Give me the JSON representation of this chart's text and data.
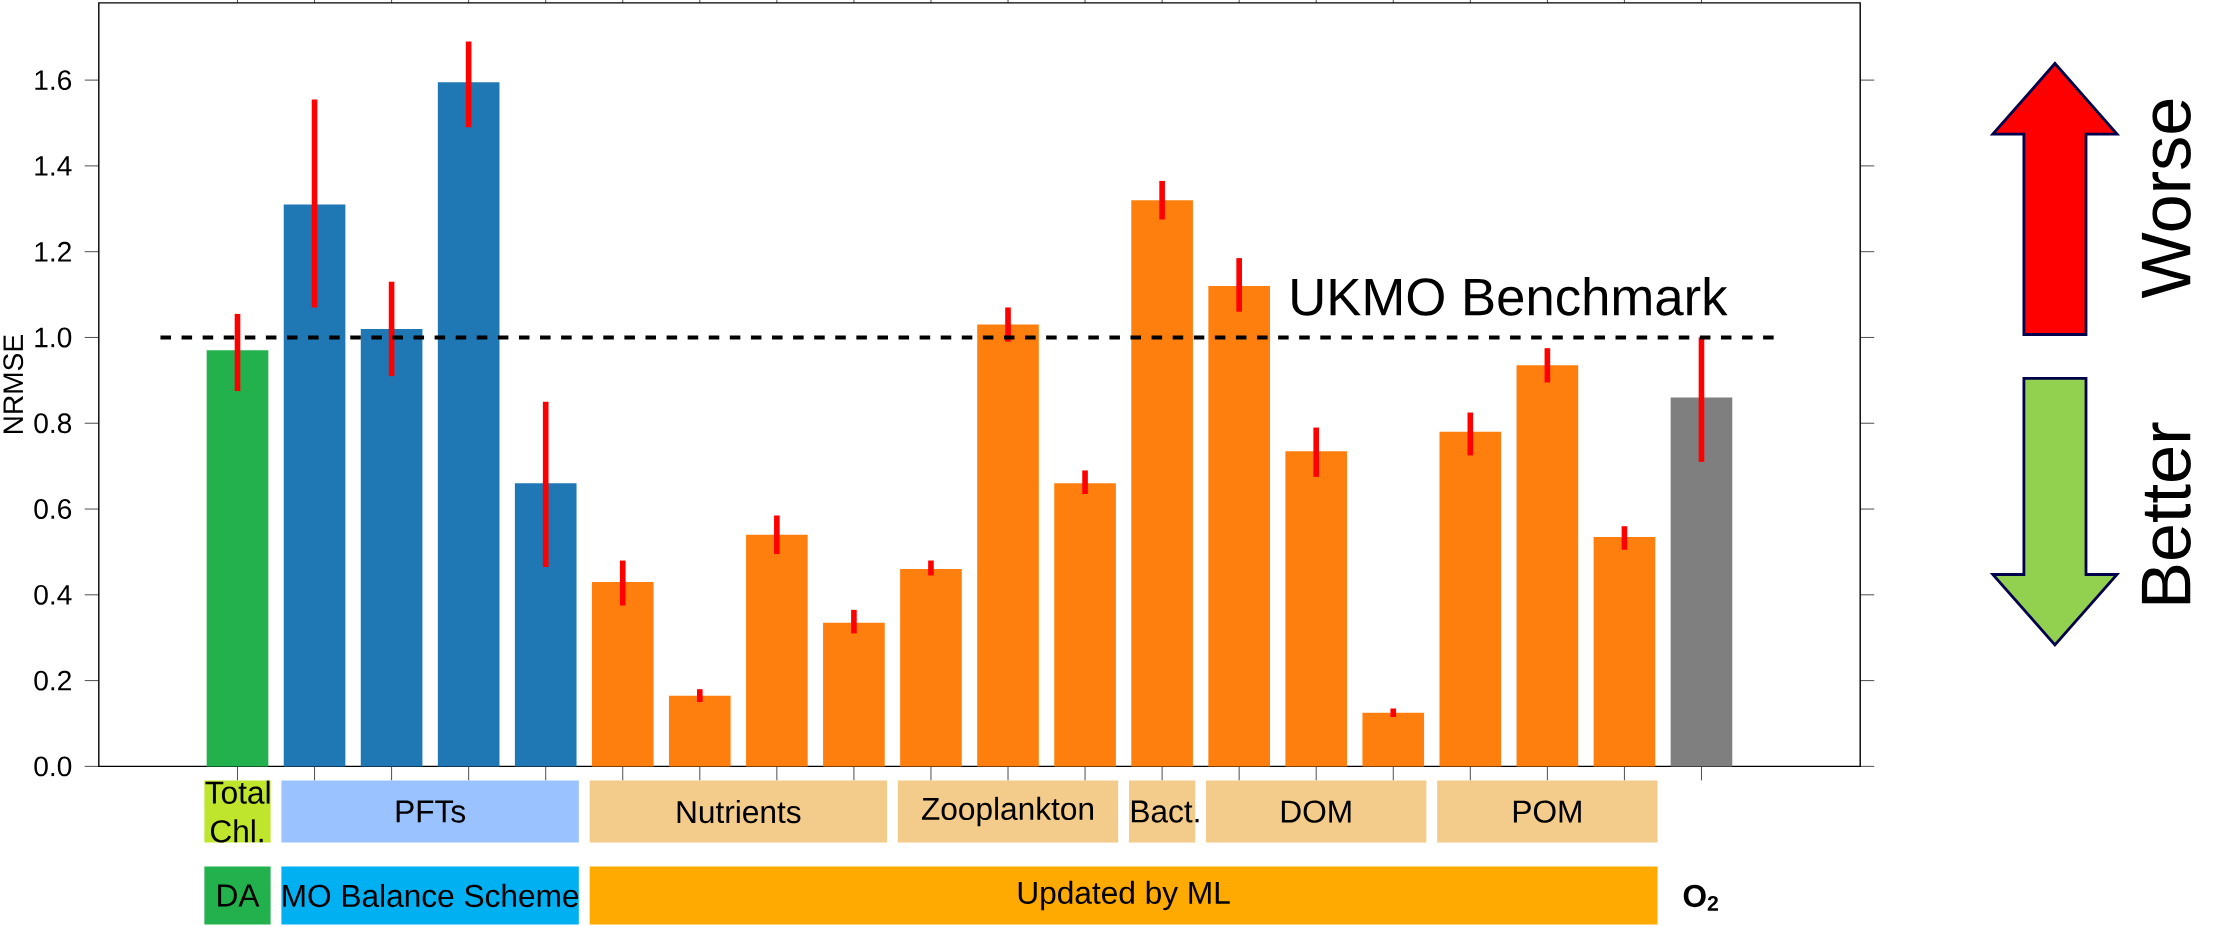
{
  "chart_data": {
    "type": "bar",
    "ylabel": "NRMSE",
    "categories": [
      null,
      null,
      null,
      null,
      null,
      null,
      null,
      null,
      null,
      null,
      null,
      null,
      null,
      null,
      null,
      null,
      null,
      null,
      null,
      null
    ],
    "values": [
      0.97,
      1.31,
      1.02,
      1.595,
      0.66,
      0.43,
      0.165,
      0.54,
      0.335,
      0.46,
      1.03,
      0.66,
      1.32,
      1.12,
      0.735,
      0.125,
      0.78,
      0.935,
      0.535,
      0.86
    ],
    "colors": [
      "#22b14c",
      "#1f77b4",
      "#1f77b4",
      "#1f77b4",
      "#1f77b4",
      "#ff7f0e",
      "#ff7f0e",
      "#ff7f0e",
      "#ff7f0e",
      "#ff7f0e",
      "#ff7f0e",
      "#ff7f0e",
      "#ff7f0e",
      "#ff7f0e",
      "#ff7f0e",
      "#ff7f0e",
      "#ff7f0e",
      "#ff7f0e",
      "#ff7f0e",
      "#7f7f7f"
    ],
    "errors": [
      [
        0.875,
        1.055
      ],
      [
        1.07,
        1.555
      ],
      [
        0.91,
        1.13
      ],
      [
        1.49,
        1.69
      ],
      [
        0.465,
        0.85
      ],
      [
        0.375,
        0.48
      ],
      [
        0.15,
        0.18
      ],
      [
        0.495,
        0.585
      ],
      [
        0.31,
        0.365
      ],
      [
        0.445,
        0.48
      ],
      [
        0.99,
        1.07
      ],
      [
        0.635,
        0.69
      ],
      [
        1.275,
        1.365
      ],
      [
        1.06,
        1.185
      ],
      [
        0.675,
        0.79
      ],
      [
        0.115,
        0.135
      ],
      [
        0.725,
        0.825
      ],
      [
        0.895,
        0.975
      ],
      [
        0.505,
        0.56
      ],
      [
        0.71,
        1.0
      ]
    ],
    "ylim": [
      0,
      1.78
    ],
    "yticks": [
      {
        "value": 0,
        "label": "0.0"
      },
      {
        "value": 0.2,
        "label": "0.2"
      },
      {
        "value": 0.4,
        "label": "0.4"
      },
      {
        "value": 0.6,
        "label": "0.6"
      },
      {
        "value": 0.8,
        "label": "0.8"
      },
      {
        "value": 1.0,
        "label": "1.0"
      },
      {
        "value": 1.2,
        "label": "1.2"
      },
      {
        "value": 1.4,
        "label": "1.4"
      },
      {
        "value": 1.6,
        "label": "1.6"
      }
    ],
    "ref_lines": [
      {
        "axis": "y",
        "value": 1.0,
        "label": "UKMO Benchmark",
        "color": "#000000",
        "line_style": "dashed"
      }
    ],
    "annotations": [
      "Total Chl.",
      "PFTs",
      "Nutrients",
      "Zooplankton",
      "Bact.",
      "DOM",
      "POM",
      "DA",
      "MO Balance Scheme",
      "Updated by ML",
      "O$_{2}$",
      "Worse",
      "Better"
    ],
    "grid": false
  }
}
